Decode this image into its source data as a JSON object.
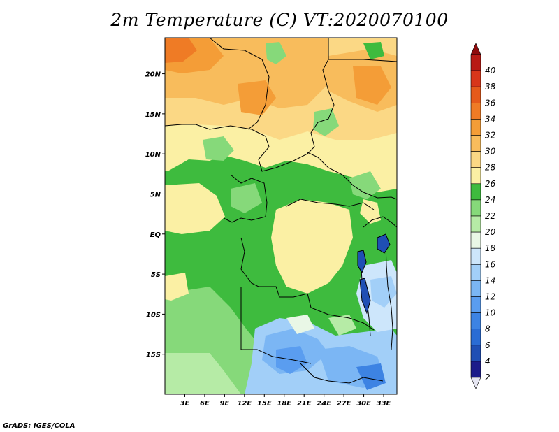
{
  "title": "2m Temperature (C) VT:2020070100",
  "credit": "GrADS: IGES/COLA",
  "map": {
    "lon_ticks": [
      "3E",
      "6E",
      "9E",
      "12E",
      "15E",
      "18E",
      "21E",
      "24E",
      "27E",
      "30E",
      "33E"
    ],
    "lat_ticks": [
      "20N",
      "15N",
      "10N",
      "5N",
      "EQ",
      "5S",
      "10S",
      "15S"
    ],
    "lon_range": [
      0,
      35
    ],
    "lat_range": [
      -20,
      24.5
    ],
    "variable": "2m Temperature",
    "units": "C"
  },
  "colorbar": {
    "levels": [
      "2",
      "4",
      "6",
      "8",
      "10",
      "12",
      "14",
      "16",
      "18",
      "20",
      "22",
      "24",
      "26",
      "28",
      "30",
      "32",
      "34",
      "36",
      "38",
      "40"
    ],
    "colors": [
      "#1c1c8a",
      "#1f4fb4",
      "#2a6cd4",
      "#3d83e3",
      "#5a9df0",
      "#7bb6f4",
      "#a2cff8",
      "#cde6fb",
      "#e9f7e6",
      "#b6eba6",
      "#86d97a",
      "#3ebb3e",
      "#fbf0a4",
      "#fbd885",
      "#f8bc5c",
      "#f49d37",
      "#ef7b25",
      "#e55a1b",
      "#d8361a",
      "#b81a14",
      "#8e0b0c"
    ],
    "under_color": "#e6e6f2"
  }
}
